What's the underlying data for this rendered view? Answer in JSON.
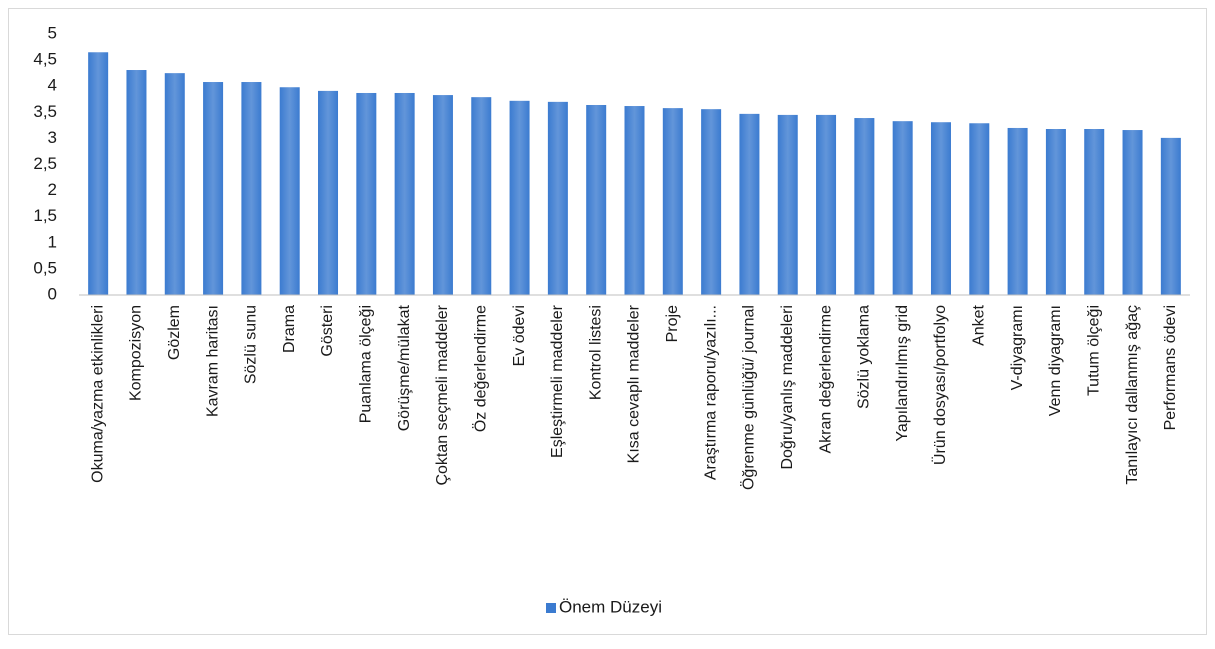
{
  "chart_data": {
    "type": "bar",
    "categories": [
      "Okuma/yazma etkinlikleri",
      "Kompozisyon",
      "Gözlem",
      "Kavram haritası",
      "Sözlü sunu",
      "Drama",
      "Gösteri",
      "Puanlama ölçeği",
      "Görüşme/mülakat",
      "Çoktan seçmeli maddeler",
      "Öz değerlendirme",
      "Ev ödevi",
      "Eşleştirmeli maddeler",
      "Kontrol listesi",
      "Kısa cevaplı maddeler",
      "Proje",
      "Araştırma raporu/yazılı...",
      "Öğrenme günlüğü/ journal",
      "Doğru/yanlış maddeleri",
      "Akran değerlendirme",
      "Sözlü yoklama",
      "Yapılandırılmış grid",
      "Ürün dosyası/portfolyo",
      "Anket",
      "V-diyagramı",
      "Venn diyagramı",
      "Tutum ölçeği",
      "Tanılayıcı dallanmış ağaç",
      "Performans ödevi"
    ],
    "series": [
      {
        "name": "Önem Düzeyi",
        "color": "#3b7bd0",
        "values": [
          4.65,
          4.31,
          4.25,
          4.08,
          4.08,
          3.98,
          3.91,
          3.87,
          3.87,
          3.83,
          3.79,
          3.72,
          3.7,
          3.64,
          3.62,
          3.58,
          3.56,
          3.47,
          3.45,
          3.45,
          3.39,
          3.33,
          3.31,
          3.29,
          3.2,
          3.18,
          3.18,
          3.16,
          3.01
        ]
      }
    ],
    "ylim": [
      0,
      5
    ],
    "yticks": [
      0,
      {
        "value": 0.5,
        "label": "0,5"
      },
      1,
      {
        "value": 1.5,
        "label": "1,5"
      },
      2,
      {
        "value": 2.5,
        "label": "2,5"
      },
      3,
      {
        "value": 3.5,
        "label": "3,5"
      },
      4,
      {
        "value": 4.5,
        "label": "4,5"
      },
      5
    ],
    "grid": false,
    "legend": "bottom"
  }
}
